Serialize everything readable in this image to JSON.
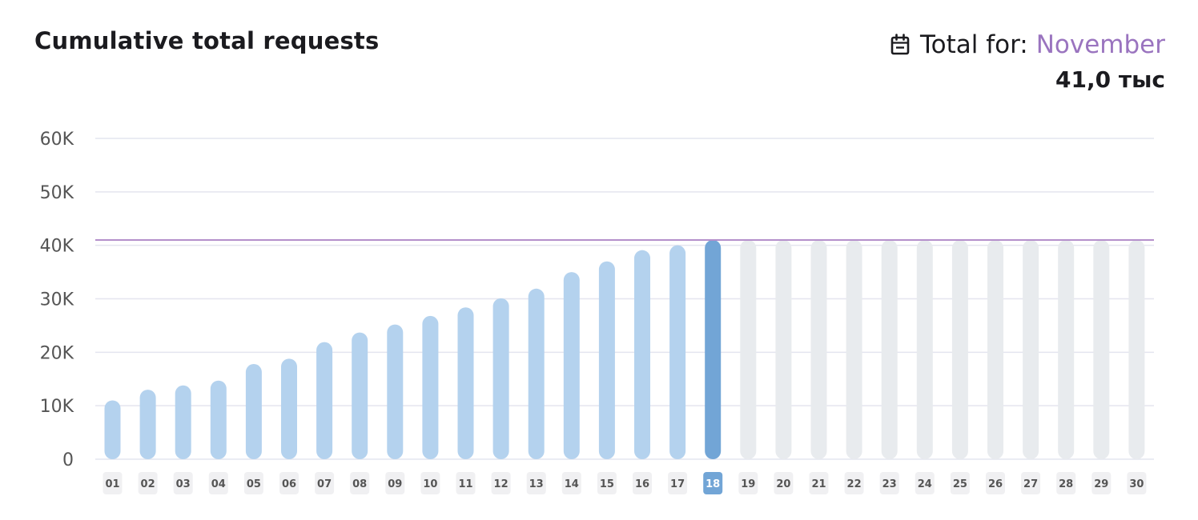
{
  "header": {
    "title": "Cumulative total requests",
    "total_prefix": "Total for:",
    "month": "November",
    "total_value": "41,0 тыс"
  },
  "colors": {
    "past_bar": "#b4d2ee",
    "current_bar": "#72a5d6",
    "future_bar": "#e8ebee",
    "reference_line": "#b48fcb",
    "grid": "#e4e5ef",
    "accent": "#9a74bf"
  },
  "chart_data": {
    "type": "bar",
    "title": "Cumulative total requests",
    "xlabel": "",
    "ylabel": "",
    "ylim": [
      0,
      60000
    ],
    "yticks": [
      0,
      10000,
      20000,
      30000,
      40000,
      50000,
      60000
    ],
    "ytick_labels": [
      "0",
      "10K",
      "20K",
      "30K",
      "40K",
      "50K",
      "60K"
    ],
    "grid": true,
    "current_index": 17,
    "reference_line": 41000,
    "categories": [
      "01",
      "02",
      "03",
      "04",
      "05",
      "06",
      "07",
      "08",
      "09",
      "10",
      "11",
      "12",
      "13",
      "14",
      "15",
      "16",
      "17",
      "18",
      "19",
      "20",
      "21",
      "22",
      "23",
      "24",
      "25",
      "26",
      "27",
      "28",
      "29",
      "30"
    ],
    "values": [
      11000,
      13000,
      13800,
      14700,
      17800,
      18800,
      21900,
      23700,
      25200,
      26800,
      28400,
      30100,
      31900,
      35000,
      37000,
      39100,
      40000,
      41000,
      null,
      null,
      null,
      null,
      null,
      null,
      null,
      null,
      null,
      null,
      null,
      null
    ],
    "projected_values": [
      null,
      null,
      null,
      null,
      null,
      null,
      null,
      null,
      null,
      null,
      null,
      null,
      null,
      null,
      null,
      null,
      null,
      null,
      41000,
      41000,
      41000,
      41000,
      41000,
      41000,
      41000,
      41000,
      41000,
      41000,
      41000,
      41000
    ]
  }
}
